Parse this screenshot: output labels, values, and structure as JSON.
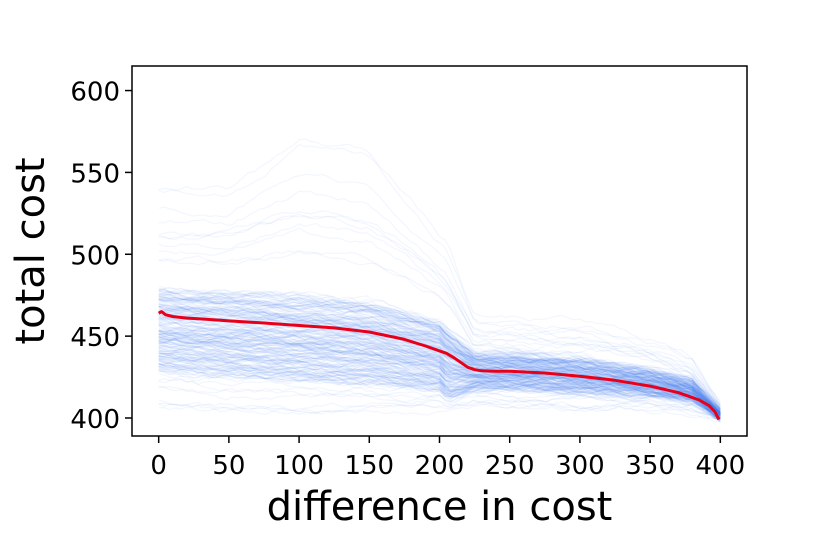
{
  "chart_data": {
    "type": "line",
    "title": "",
    "xlabel": "difference in cost",
    "ylabel": "total cost",
    "xlim": [
      -19,
      419
    ],
    "ylim": [
      389,
      615
    ],
    "xticks": [
      0,
      50,
      100,
      150,
      200,
      250,
      300,
      350,
      400
    ],
    "yticks": [
      400,
      450,
      500,
      550,
      600
    ],
    "grid": false,
    "legend": "none",
    "colors": {
      "traces": "#4a7cf7",
      "mean": "#e8001a",
      "axes": "#000000"
    },
    "series": [
      {
        "role": "mean",
        "x": [
          0,
          2,
          5,
          10,
          20,
          30,
          50,
          75,
          100,
          125,
          150,
          175,
          190,
          200,
          205,
          210,
          215,
          220,
          225,
          230,
          240,
          250,
          275,
          300,
          325,
          350,
          370,
          385,
          392,
          396,
          399
        ],
        "y": [
          464,
          465,
          463,
          462,
          461,
          460.5,
          459.3,
          458,
          456.5,
          455,
          452.5,
          448,
          444,
          441,
          439.5,
          437,
          434,
          431,
          429.5,
          428.8,
          428.6,
          428.5,
          427.5,
          425.5,
          423,
          419.5,
          415.5,
          411,
          407.5,
          404,
          399
        ]
      }
    ],
    "trace_envelope": {
      "x": [
        0,
        50,
        100,
        150,
        200,
        206,
        225,
        250,
        300,
        350,
        380,
        400
      ],
      "upper": [
        545,
        545,
        575,
        570,
        515,
        510,
        462,
        462,
        460,
        450,
        438,
        410
      ],
      "lower": [
        405,
        402,
        401,
        402,
        404,
        405,
        406,
        405,
        404,
        404,
        402,
        399
      ],
      "q_high": [
        480,
        478,
        476,
        472,
        460,
        455,
        440,
        440,
        437,
        430,
        423,
        404
      ],
      "q_low": [
        430,
        427,
        424,
        422,
        418,
        412,
        418,
        418,
        416,
        414,
        410,
        400
      ]
    }
  }
}
